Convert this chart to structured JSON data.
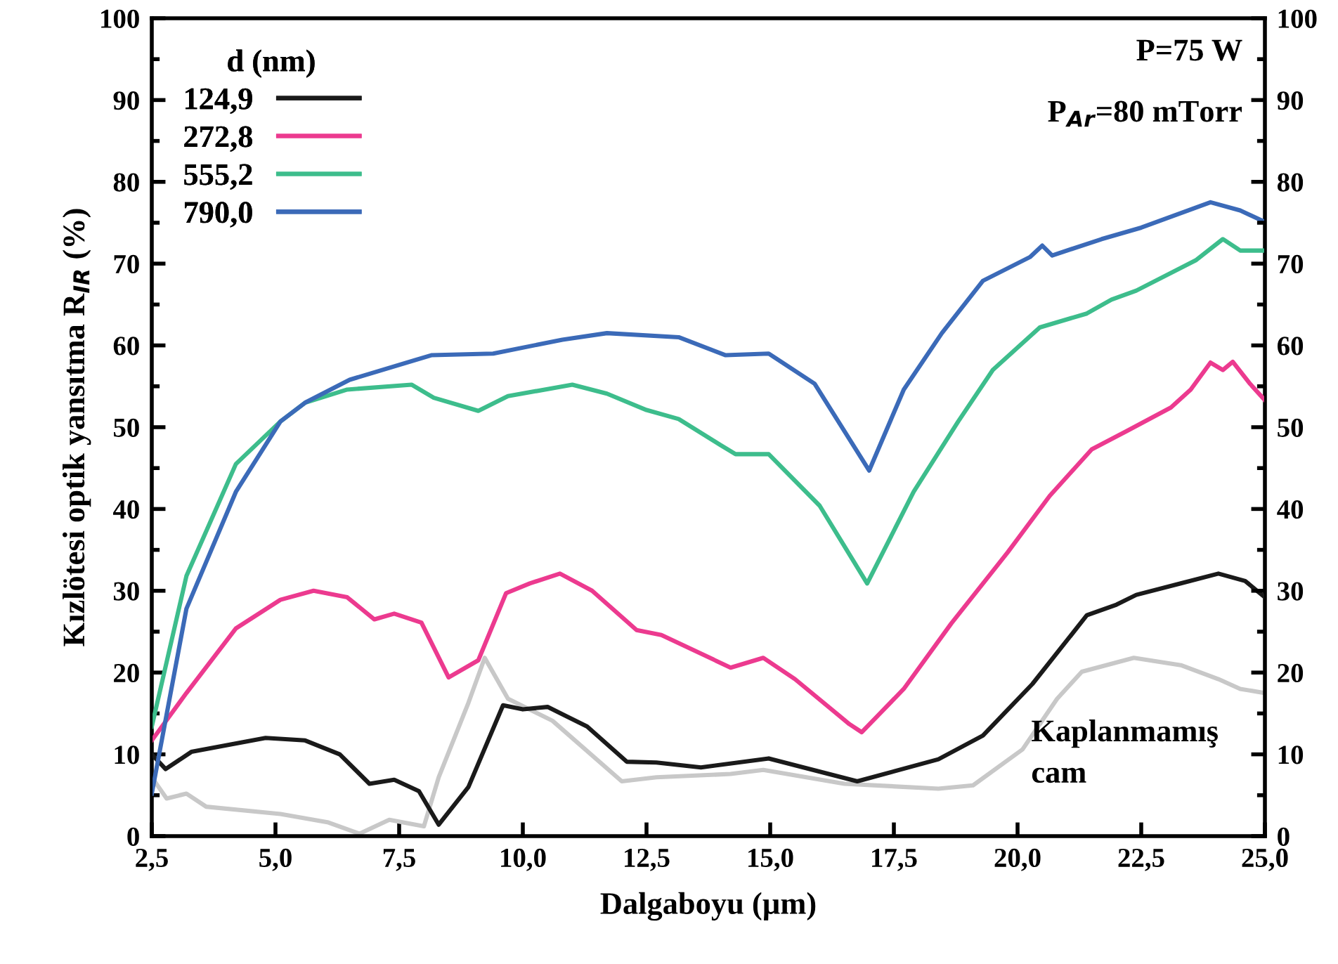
{
  "chart_data": {
    "type": "line",
    "xlabel": "Dalgaboyu (µm)",
    "ylabel": "Kızlötesi optik yansıtma R$_{IR}$ (%)",
    "legend_title": "d (nm)",
    "annotations": [
      "P=75 W",
      "P$_{Ar}$=80 mTorr",
      "Kaplanmamış\ncam"
    ],
    "series": [
      {
        "name": "124,9",
        "color": "#1a1a1a",
        "x": [
          2.5,
          2.78,
          3.3,
          4.8,
          5.6,
          6.3,
          6.9,
          7.4,
          7.9,
          8.3,
          8.9,
          9.6,
          10.0,
          10.5,
          11.3,
          12.1,
          12.7,
          13.6,
          14.97,
          16.76,
          18.4,
          19.3,
          20.3,
          21.4,
          22.0,
          22.4,
          23.3,
          24.06,
          24.6,
          25.0
        ],
        "values": [
          10,
          8.2,
          10.3,
          12,
          11.7,
          10,
          6.4,
          6.9,
          5.5,
          1.4,
          6,
          16,
          15.5,
          15.8,
          13.4,
          9.1,
          9,
          8.4,
          9.5,
          6.7,
          9.4,
          12.3,
          18.6,
          27,
          28.3,
          29.5,
          30.9,
          32.1,
          31.2,
          29.2
        ]
      },
      {
        "name": "272,8",
        "color": "#ec3a8f",
        "x": [
          2.5,
          3.2,
          4.2,
          5.1,
          5.77,
          6.45,
          7.0,
          7.4,
          7.95,
          8.5,
          9.1,
          9.66,
          10.14,
          10.75,
          11.4,
          12.3,
          12.8,
          14.2,
          14.86,
          15.5,
          16.6,
          16.85,
          17.7,
          18.66,
          19.8,
          20.65,
          21.5,
          22.2,
          23.1,
          23.5,
          23.9,
          24.15,
          24.35,
          24.7,
          25.0
        ],
        "values": [
          11.7,
          17.5,
          25.4,
          28.9,
          30,
          29.2,
          26.5,
          27.2,
          26.1,
          19.4,
          21.5,
          29.7,
          30.9,
          32.1,
          30,
          25.2,
          24.6,
          20.6,
          21.8,
          19.2,
          13.7,
          12.7,
          18,
          26,
          34.7,
          41.6,
          47.3,
          49.5,
          52.4,
          54.6,
          57.9,
          57,
          58,
          55.3,
          53.3
        ]
      },
      {
        "name": "555,2",
        "color": "#3dbd8c",
        "x": [
          2.5,
          3.2,
          4.2,
          5.1,
          5.6,
          6.45,
          7.75,
          8.2,
          9.1,
          9.7,
          11.0,
          11.7,
          12.5,
          13.15,
          14.0,
          14.3,
          14.97,
          16.0,
          16.96,
          17.9,
          18.8,
          19.5,
          20.45,
          21.4,
          21.9,
          22.4,
          23.6,
          24.15,
          24.5,
          25.0
        ],
        "values": [
          13.4,
          31.8,
          45.5,
          50.7,
          53,
          54.6,
          55.2,
          53.6,
          52,
          53.8,
          55.2,
          54.1,
          52.1,
          51,
          47.8,
          46.7,
          46.7,
          40.4,
          30.9,
          42.1,
          50.7,
          57,
          62.2,
          63.9,
          65.6,
          66.7,
          70.4,
          73,
          71.6,
          71.6
        ]
      },
      {
        "name": "790,0",
        "color": "#3b6ab8",
        "x": [
          2.5,
          3.2,
          4.2,
          5.1,
          5.6,
          6.5,
          8.15,
          9.4,
          10.8,
          11.7,
          13.15,
          14.1,
          14.97,
          15.9,
          17.0,
          17.7,
          18.47,
          19.3,
          20.25,
          20.5,
          20.7,
          21.7,
          22.5,
          23.9,
          24.5,
          25.0
        ],
        "values": [
          5.2,
          27.8,
          42.1,
          50.7,
          53,
          55.8,
          58.8,
          59,
          60.7,
          61.5,
          61,
          58.8,
          59,
          55.3,
          44.7,
          54.6,
          61.5,
          67.9,
          70.8,
          72.2,
          71,
          73,
          74.4,
          77.5,
          76.5,
          75.1
        ]
      },
      {
        "color": "#c8c8c8",
        "x": [
          2.5,
          2.8,
          3.2,
          3.6,
          5.1,
          6.05,
          6.7,
          7.3,
          8.0,
          8.3,
          8.9,
          9.23,
          9.7,
          10.6,
          12.0,
          12.7,
          14.2,
          14.86,
          16.5,
          18.4,
          19.1,
          20.1,
          20.8,
          21.3,
          22.35,
          23.3,
          24.06,
          24.5,
          25.0
        ],
        "values": [
          7.2,
          4.6,
          5.2,
          3.6,
          2.7,
          1.7,
          0.3,
          2,
          1.2,
          7.2,
          16.3,
          21.8,
          16.8,
          14.1,
          6.7,
          7.2,
          7.6,
          8.1,
          6.4,
          5.8,
          6.2,
          10.6,
          16.8,
          20.1,
          21.8,
          20.9,
          19.2,
          18,
          17.5
        ]
      }
    ],
    "xlim": [
      2.5,
      25.0
    ],
    "xticks": [
      {
        "value": 2.5,
        "label": "2,5"
      },
      {
        "value": 5.0,
        "label": "5,0"
      },
      {
        "value": 7.5,
        "label": "7,5"
      },
      {
        "value": 10.0,
        "label": "10,0"
      },
      {
        "value": 12.5,
        "label": "12,5"
      },
      {
        "value": 15.0,
        "label": "15,0"
      },
      {
        "value": 17.5,
        "label": "17,5"
      },
      {
        "value": 20.0,
        "label": "20,0"
      },
      {
        "value": 22.5,
        "label": "22,5"
      },
      {
        "value": 25.0,
        "label": "25,0"
      }
    ],
    "ylim": [
      0,
      100
    ],
    "yticks": [
      0,
      10,
      20,
      30,
      40,
      50,
      60,
      70,
      80,
      90,
      100
    ],
    "y2lim": [
      0,
      100
    ],
    "y2ticks": [
      0,
      10,
      20,
      30,
      40,
      50,
      60,
      70,
      80,
      90,
      100
    ],
    "grid": false,
    "legend": "top left",
    "line_style": "solid"
  }
}
